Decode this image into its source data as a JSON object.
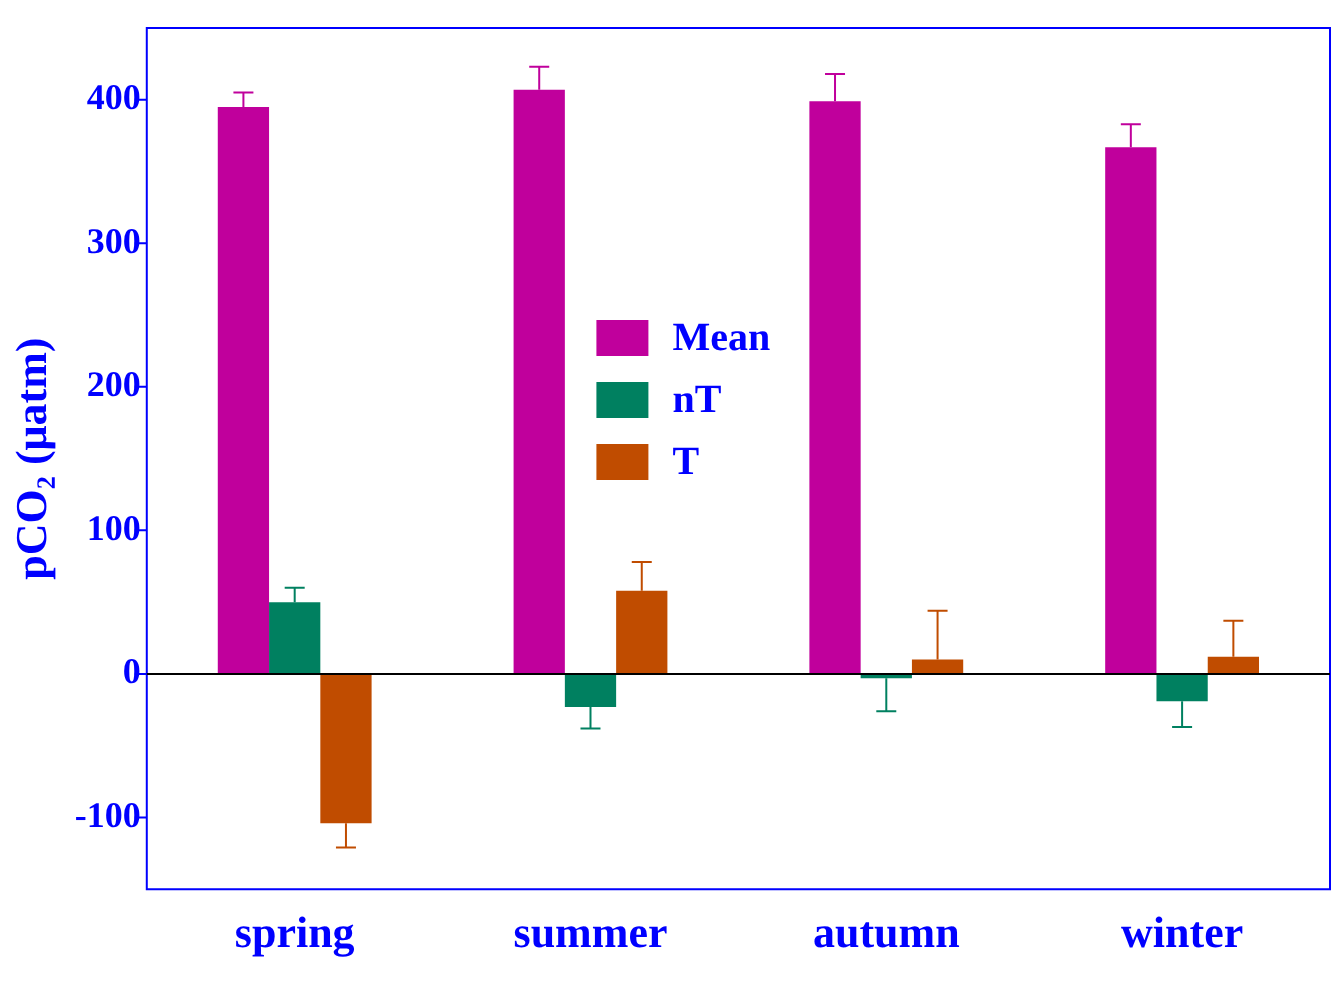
{
  "chart_data": {
    "type": "bar",
    "ylabel": "pCO₂ (μatm)",
    "categories": [
      "spring",
      "summer",
      "autumn",
      "winter"
    ],
    "series": [
      {
        "name": "Mean",
        "color": "#c0009c",
        "values": [
          395,
          407,
          399,
          367
        ],
        "errors": [
          [
            395,
            405
          ],
          [
            407,
            423
          ],
          [
            399,
            418
          ],
          [
            367,
            383
          ]
        ]
      },
      {
        "name": "nT",
        "color": "#008060",
        "values": [
          50,
          -23,
          -3,
          -19
        ],
        "errors": [
          [
            50,
            60
          ],
          [
            -38,
            -23
          ],
          [
            -26,
            -3
          ],
          [
            -37,
            -19
          ]
        ]
      },
      {
        "name": "T",
        "color": "#c04c00",
        "values": [
          -104,
          58,
          10,
          12
        ],
        "errors": [
          [
            -121,
            -104
          ],
          [
            58,
            78
          ],
          [
            10,
            44
          ],
          [
            12,
            37
          ]
        ]
      }
    ],
    "ylim": [
      -150,
      450
    ],
    "yticks": [
      -100,
      0,
      100,
      200,
      300,
      400
    ],
    "grid": false,
    "ref_lines": [
      {
        "axis": "y",
        "value": 0,
        "color": "#000000"
      }
    ],
    "legend": "center"
  }
}
